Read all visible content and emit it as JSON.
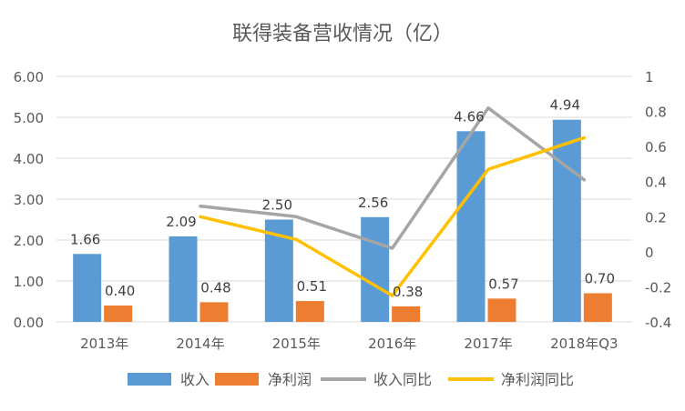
{
  "chart_data": {
    "type": "bar",
    "title": "联得装备营收情况（亿）",
    "categories": [
      "2013年",
      "2014年",
      "2015年",
      "2016年",
      "2017年",
      "2018年Q3"
    ],
    "bar_series": [
      {
        "name": "收入",
        "values": [
          1.66,
          2.09,
          2.5,
          2.56,
          4.66,
          4.94
        ],
        "labels": [
          "1.66",
          "2.09",
          "2.50",
          "2.56",
          "4.66",
          "4.94"
        ],
        "color": "#5B9BD5"
      },
      {
        "name": "净利润",
        "values": [
          0.4,
          0.48,
          0.51,
          0.38,
          0.57,
          0.7
        ],
        "labels": [
          "0.40",
          "0.48",
          "0.51",
          "0.38",
          "0.57",
          "0.70"
        ],
        "color": "#ED7D31"
      }
    ],
    "line_series": [
      {
        "name": "收入同比",
        "values": [
          null,
          0.26,
          0.2,
          0.02,
          0.82,
          0.41
        ],
        "color": "#A5A5A5"
      },
      {
        "name": "净利润同比",
        "values": [
          null,
          0.2,
          0.07,
          -0.25,
          0.47,
          0.65
        ],
        "color": "#FFC000"
      }
    ],
    "y_left": {
      "min": 0,
      "max": 6,
      "ticks": [
        "0.00",
        "1.00",
        "2.00",
        "3.00",
        "4.00",
        "5.00",
        "6.00"
      ]
    },
    "y_right": {
      "min": -0.4,
      "max": 1,
      "ticks": [
        "-0.4",
        "-0.2",
        "0",
        "0.2",
        "0.4",
        "0.6",
        "0.8",
        "1"
      ]
    },
    "grid": true,
    "legend": "bottom"
  }
}
